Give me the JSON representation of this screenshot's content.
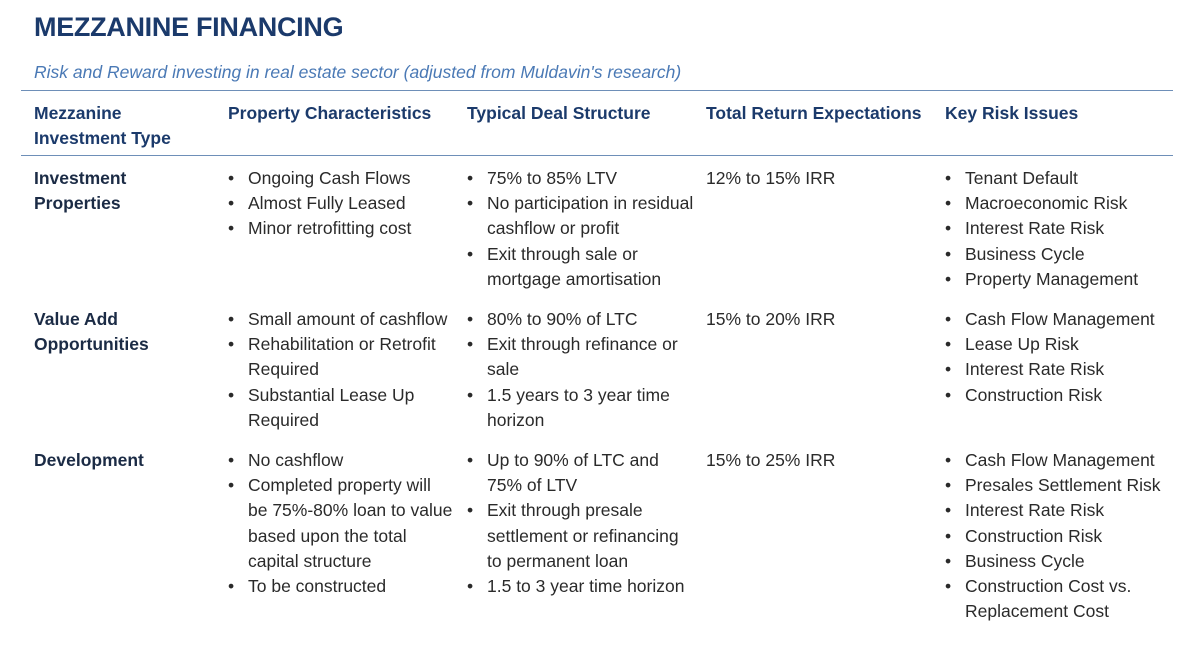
{
  "title": "MEZZANINE FINANCING",
  "subtitle": "Risk and Reward investing in real estate sector (adjusted from Muldavin's research)",
  "headers": {
    "type": "Mezzanine Investment Type",
    "property": "Property Characteristics",
    "deal": "Typical Deal Structure",
    "returns": "Total Return Expectations",
    "risk": "Key Risk Issues"
  },
  "rows": [
    {
      "type": "Investment Properties",
      "property": [
        "Ongoing Cash Flows",
        "Almost Fully Leased",
        "Minor retrofitting cost"
      ],
      "deal": [
        "75% to 85% LTV",
        "No participation in residual cashflow or profit",
        "Exit through sale or mortgage amortisation"
      ],
      "returns": "12% to 15% IRR",
      "risk": [
        "Tenant Default",
        "Macroeconomic Risk",
        "Interest Rate Risk",
        "Business Cycle",
        "Property Management"
      ]
    },
    {
      "type": "Value Add Opportunities",
      "property": [
        "Small amount of cashflow",
        "Rehabilitation or Retrofit Required",
        "Substantial Lease Up Required"
      ],
      "deal": [
        "80% to 90% of LTC",
        "Exit through refinance or sale",
        "1.5 years to 3 year time horizon"
      ],
      "returns": "15% to 20% IRR",
      "risk": [
        "Cash Flow Management",
        "Lease Up Risk",
        "Interest Rate Risk",
        "Construction Risk"
      ]
    },
    {
      "type": "Development",
      "property": [
        "No cashflow",
        "Completed property will be 75%-80% loan to value based upon the total capital structure",
        "To be constructed"
      ],
      "deal": [
        "Up to 90% of LTC and 75% of  LTV",
        "Exit through presale settlement or refinancing to permanent loan",
        "1.5 to 3 year time horizon"
      ],
      "returns": "15% to 25% IRR",
      "risk": [
        "Cash Flow Management",
        "Presales Settlement Risk",
        "Interest Rate Risk",
        "Construction Risk",
        "Business Cycle",
        "Construction Cost vs. Replacement Cost"
      ]
    }
  ],
  "colors": {
    "title": "#1b3a6b",
    "subtitle": "#4a79b5",
    "rule": "#6e8fb8"
  }
}
